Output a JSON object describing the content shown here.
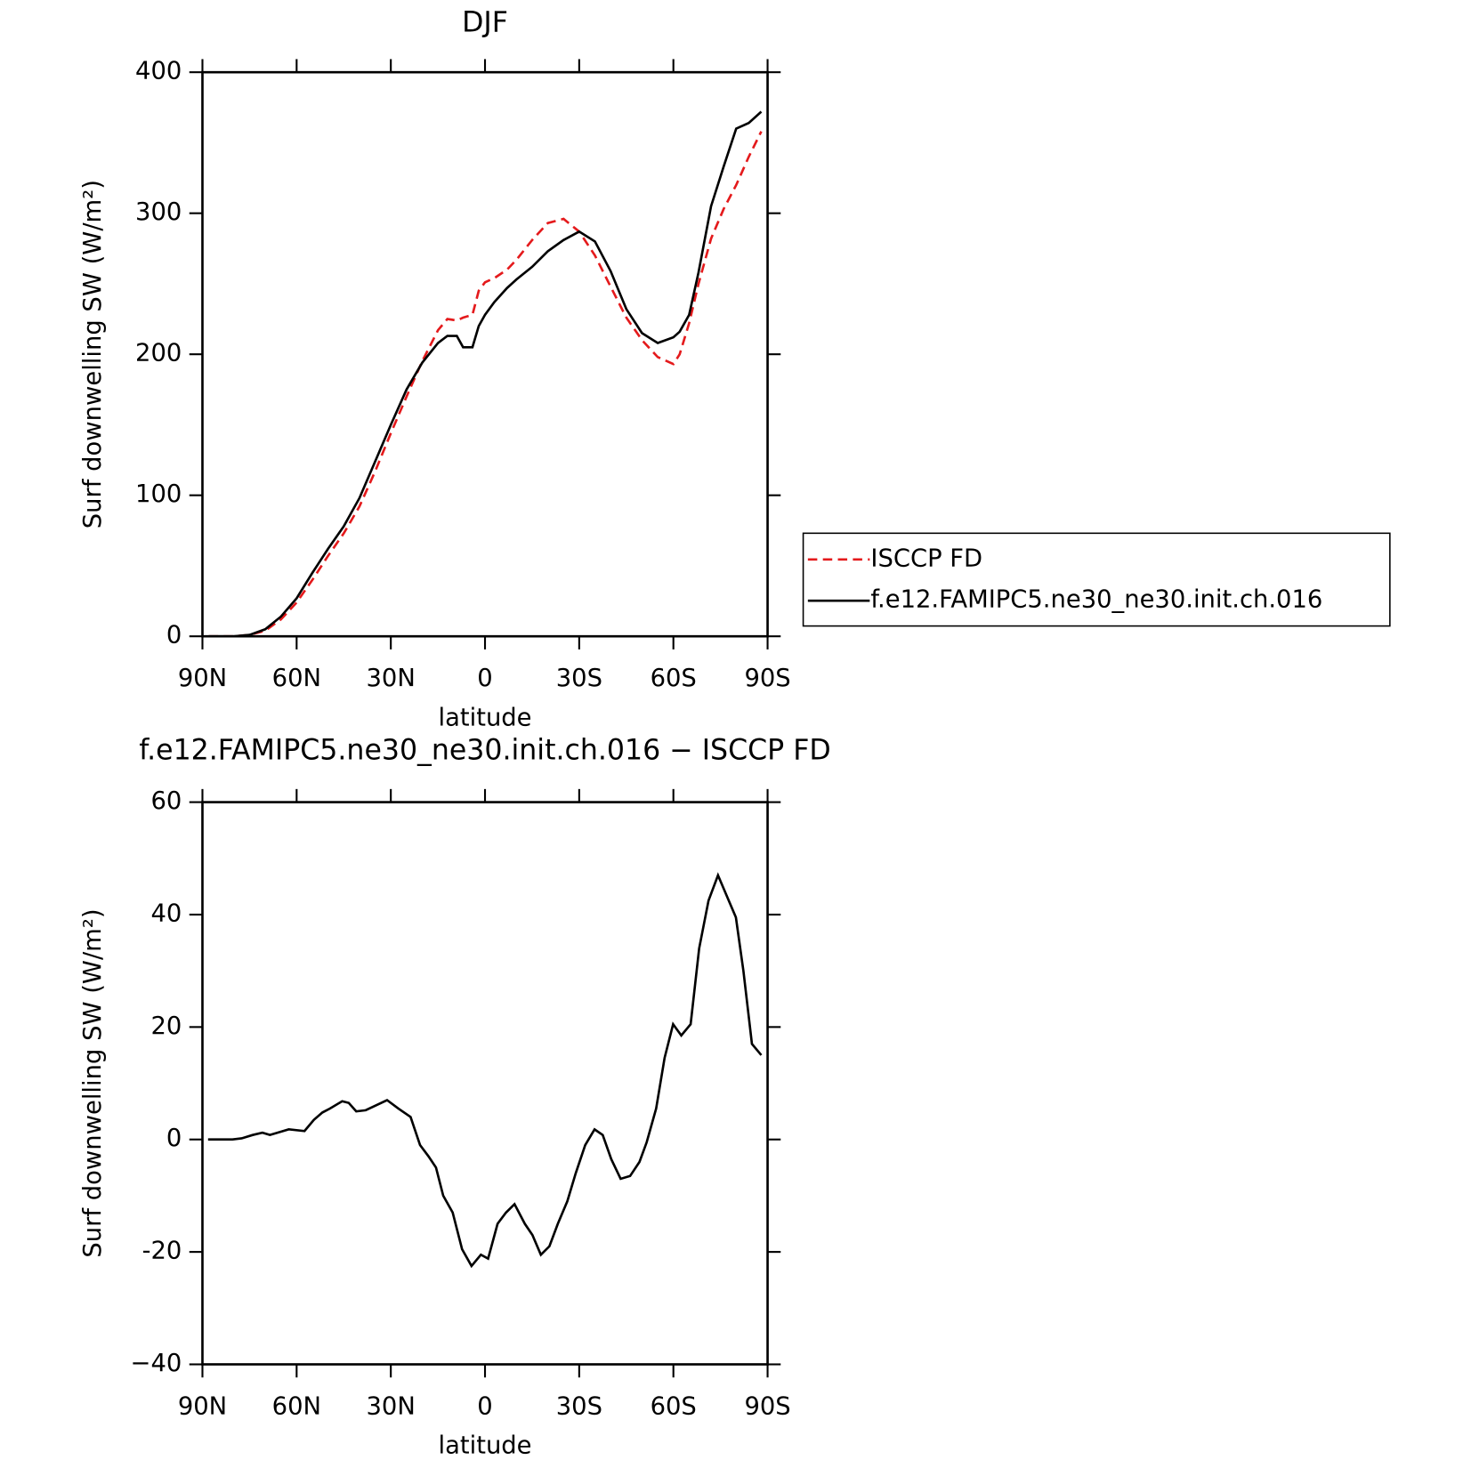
{
  "chart_data": [
    {
      "type": "line",
      "title": "DJF",
      "xlabel": "latitude",
      "ylabel": "Surf downwelling SW (W/m²)",
      "x": [
        88,
        80,
        75,
        70,
        65,
        60,
        55,
        50,
        45,
        40,
        35,
        30,
        25,
        20,
        15,
        12,
        9,
        7,
        4,
        2,
        0,
        -3,
        -7,
        -10,
        -15,
        -20,
        -25,
        -30,
        -35,
        -40,
        -45,
        -50,
        -55,
        -60,
        -62,
        -65,
        -68,
        -72,
        -76,
        -80,
        -84,
        -88
      ],
      "series": [
        {
          "name": "ISCCP FD",
          "color": "#e41a1c",
          "dash": true,
          "values": [
            0,
            0,
            1,
            4,
            12,
            24,
            40,
            57,
            73,
            92,
            117,
            144,
            170,
            195,
            217,
            225,
            224,
            226,
            228,
            245,
            251,
            254,
            260,
            267,
            281,
            293,
            296,
            287,
            270,
            248,
            226,
            210,
            198,
            193,
            200,
            222,
            250,
            282,
            303,
            320,
            340,
            358
          ]
        },
        {
          "name": "f.e12.FAMIPC5.ne30_ne30.init.ch.016",
          "color": "#000000",
          "dash": false,
          "values": [
            0,
            0,
            1,
            5,
            14,
            27,
            45,
            62,
            78,
            98,
            124,
            150,
            175,
            194,
            208,
            213,
            213,
            205,
            205,
            220,
            228,
            237,
            247,
            253,
            262,
            273,
            281,
            287,
            280,
            259,
            232,
            215,
            208,
            212,
            216,
            228,
            258,
            305,
            333,
            360,
            364,
            372
          ]
        }
      ],
      "xlim": [
        90,
        -90
      ],
      "xticks": [
        {
          "value": 90,
          "label": "90N"
        },
        {
          "value": 60,
          "label": "60N"
        },
        {
          "value": 30,
          "label": "30N"
        },
        0,
        {
          "value": -30,
          "label": "30S"
        },
        {
          "value": -60,
          "label": "60S"
        },
        {
          "value": -90,
          "label": "90S"
        }
      ],
      "ylim": [
        0,
        400
      ],
      "yticks": [
        0,
        100,
        200,
        300,
        400
      ],
      "legend": "outside right"
    },
    {
      "type": "line",
      "title": "f.e12.FAMIPC5.ne30_ne30.init.ch.016 − ISCCP FD",
      "xlabel": "latitude",
      "ylabel": "Surf downwelling SW (W/m²)",
      "x": [
        88.2,
        80.4,
        77.5,
        74,
        70.9,
        68.5,
        66.1,
        62.5,
        57.5,
        54.5,
        51.8,
        49.4,
        45.5,
        43.4,
        41,
        38,
        31.2,
        27.6,
        23.7,
        20.7,
        18,
        15.6,
        13.3,
        10.3,
        7.3,
        4.3,
        1.3,
        -1,
        -4,
        -6.7,
        -9.4,
        -12.7,
        -15.1,
        -17.8,
        -20.5,
        -23.2,
        -26.2,
        -28.9,
        -31.9,
        -34.9,
        -37.5,
        -40.2,
        -43.2,
        -46.2,
        -49.2,
        -51.5,
        -54.5,
        -57.2,
        -59.9,
        -62.5,
        -65.5,
        -68.2,
        -71.2,
        -74.2,
        -79.9,
        -82.3,
        -85,
        -88
      ],
      "series": [
        {
          "name": "f.e12.FAMIPC5.ne30_ne30.init.ch.016 − ISCCP FD",
          "color": "#000000",
          "values": [
            0,
            0,
            0.2,
            0.8,
            1.2,
            0.8,
            1.2,
            1.8,
            1.5,
            3.5,
            4.8,
            5.5,
            6.8,
            6.5,
            5,
            5.2,
            7,
            5.5,
            4,
            -1,
            -3,
            -5,
            -10,
            -13,
            -19.5,
            -22.5,
            -20.5,
            -21.2,
            -15,
            -13,
            -11.5,
            -15,
            -17,
            -20.5,
            -19,
            -15,
            -11,
            -6,
            -1,
            1.8,
            0.8,
            -3.5,
            -7,
            -6.5,
            -4,
            -0.5,
            5.5,
            14.5,
            20.5,
            18.5,
            20.5,
            34,
            42.5,
            47,
            39.5,
            30,
            17,
            15
          ]
        }
      ],
      "xlim": [
        90,
        -90
      ],
      "xticks": [
        {
          "value": 90,
          "label": "90N"
        },
        {
          "value": 60,
          "label": "60N"
        },
        {
          "value": 30,
          "label": "30N"
        },
        0,
        {
          "value": -30,
          "label": "30S"
        },
        {
          "value": -60,
          "label": "60S"
        },
        {
          "value": -90,
          "label": "90S"
        }
      ],
      "ylim": [
        -40,
        60
      ],
      "yticks": [
        {
          "value": -40,
          "label": "−40"
        },
        -20,
        0,
        20,
        40,
        60
      ]
    }
  ]
}
